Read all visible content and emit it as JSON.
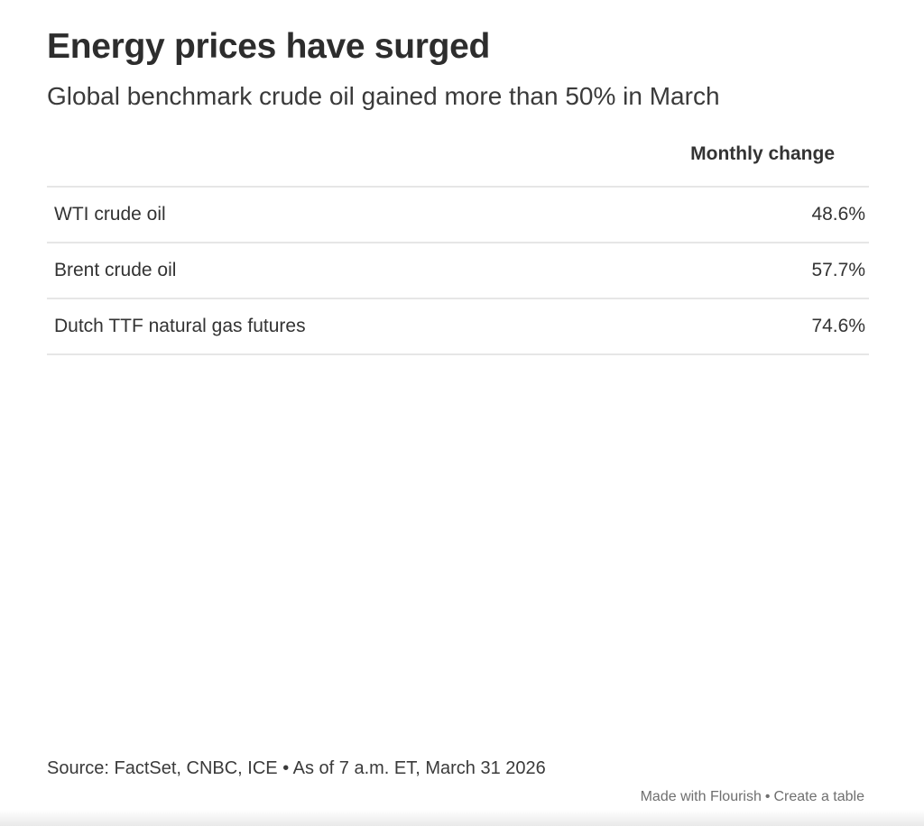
{
  "header": {
    "title": "Energy prices have surged",
    "subtitle": "Global benchmark crude oil gained more than 50% in March"
  },
  "table": {
    "value_column_header": "Monthly change",
    "rows": [
      {
        "label": "WTI crude oil",
        "value": "48.6%"
      },
      {
        "label": "Brent crude oil",
        "value": "57.7%"
      },
      {
        "label": "Dutch TTF natural gas futures",
        "value": "74.6%"
      }
    ]
  },
  "footer": {
    "source": "Source: FactSet, CNBC, ICE • As of 7 a.m. ET, March 31 2026",
    "credit": {
      "made_with": "Made with Flourish",
      "separator": "•",
      "cta": "Create a table"
    }
  },
  "colors": {
    "text": "#333333",
    "divider": "#e6e6e6",
    "credit_text": "#6f6f6f",
    "background": "#ffffff"
  },
  "chart_data": {
    "type": "table",
    "title": "Energy prices have surged",
    "subtitle": "Global benchmark crude oil gained more than 50% in March",
    "columns": [
      "",
      "Monthly change"
    ],
    "categories": [
      "WTI crude oil",
      "Brent crude oil",
      "Dutch TTF natural gas futures"
    ],
    "values": [
      48.6,
      57.7,
      74.6
    ],
    "value_unit": "%",
    "legend_position": "none",
    "grid": "horizontal-row-dividers",
    "source": "Source: FactSet, CNBC, ICE • As of 7 a.m. ET, March 31 2026"
  }
}
